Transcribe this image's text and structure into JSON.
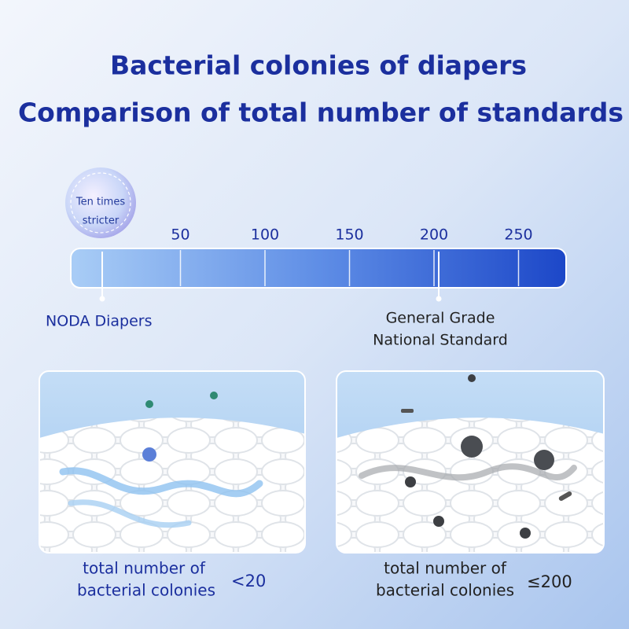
{
  "header": {
    "title_lines": [
      "Bacterial colonies of diapers",
      "Comparison of total number of standards"
    ]
  },
  "badge": {
    "lines": [
      "Ten times",
      "stricter"
    ]
  },
  "scale": {
    "ticks": [
      50,
      100,
      150,
      200,
      250
    ],
    "markers": [
      {
        "label_lines": [
          "NODA Diapers"
        ]
      },
      {
        "label_lines": [
          "General Grade",
          "National Standard"
        ]
      }
    ]
  },
  "panels": [
    {
      "caption_lines": [
        "total number of",
        "bacterial colonies"
      ],
      "limit": "<20"
    },
    {
      "caption_lines": [
        "total number of",
        "bacterial colonies"
      ],
      "limit": "≤200"
    }
  ]
}
